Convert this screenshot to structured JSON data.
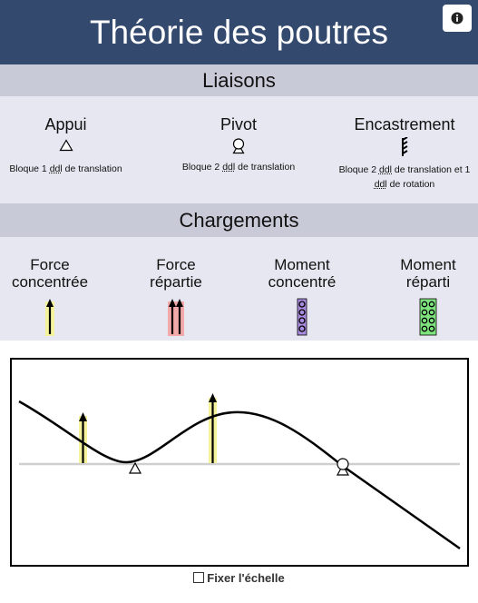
{
  "header": {
    "title": "Théorie des poutres",
    "info_icon": "info-circle-icon"
  },
  "liaisons": {
    "title": "Liaisons",
    "items": [
      {
        "name": "Appui",
        "desc": "Bloque 1 ddl de translation",
        "icon": "triangle-support-icon"
      },
      {
        "name": "Pivot",
        "desc": "Bloque 2 ddl de translation",
        "icon": "pivot-icon"
      },
      {
        "name": "Encastrement",
        "desc_part1": "Bloque 2",
        "desc_ddl_a": "ddl",
        "desc_part2": " de translation et 1",
        "desc_ddl_b": "ddl",
        "desc_part3": " de rotation",
        "icon": "fixed-support-icon"
      }
    ],
    "ddl": "ddl",
    "desc_a_rest": " de translation"
  },
  "chargements": {
    "title": "Chargements",
    "items": [
      {
        "line1": "Force",
        "line2": "concentrée",
        "icon": "point-force-icon",
        "color": "#f4f29b"
      },
      {
        "line1": "Force",
        "line2": "répartie",
        "icon": "distributed-force-icon",
        "color": "#f2a9a9"
      },
      {
        "line1": "Moment",
        "line2": "concentré",
        "icon": "point-moment-icon",
        "color": "#a98be0"
      },
      {
        "line1": "Moment",
        "line2": "réparti",
        "icon": "distributed-moment-icon",
        "color": "#7fe27f"
      }
    ]
  },
  "plot": {
    "description_icons": [
      "force-arrow-icon",
      "support-triangle-icon",
      "pivot-icon"
    ],
    "force_color": "#f4f29b"
  },
  "footer": {
    "fix_scale_label": "Fixer l'échelle",
    "checked": false
  }
}
